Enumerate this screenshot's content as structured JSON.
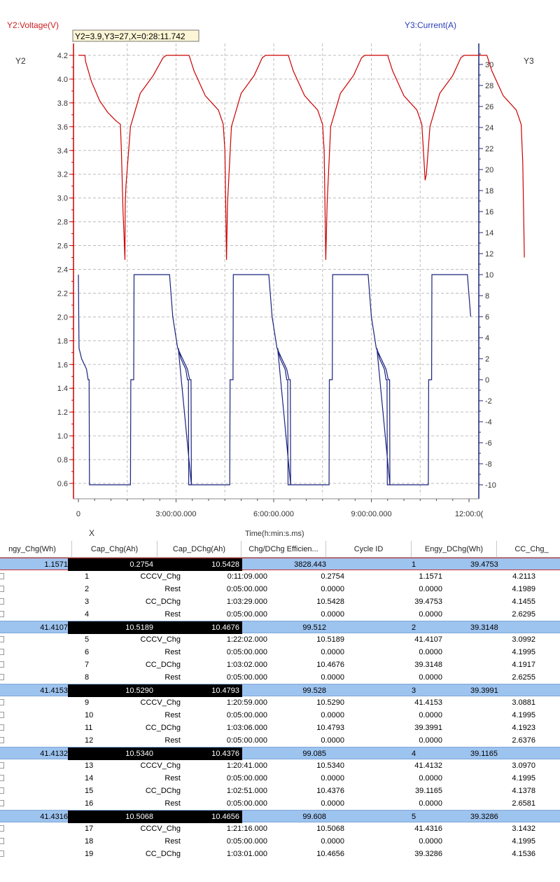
{
  "chart_data": {
    "type": "line",
    "legend": {
      "y2": "Y2:Voltage(V)",
      "y3": "Y3:Current(A)"
    },
    "cursor_readout": "Y2=3.9,Y3=27,X=0:28:11.742",
    "y2_axis": {
      "label": "Y2",
      "range": [
        0.5,
        4.3
      ],
      "ticks": [
        "0.6",
        "0.8",
        "1.0",
        "1.2",
        "1.4",
        "1.6",
        "1.8",
        "2.0",
        "2.2",
        "2.4",
        "2.6",
        "2.8",
        "3.0",
        "3.2",
        "3.4",
        "3.6",
        "3.8",
        "4.0",
        "4.2"
      ]
    },
    "y3_axis": {
      "label": "Y3",
      "range": [
        -11,
        32
      ],
      "ticks": [
        "-10",
        "-8",
        "-6",
        "-4",
        "-2",
        "0",
        "2",
        "4",
        "6",
        "8",
        "10",
        "12",
        "14",
        "16",
        "18",
        "20",
        "22",
        "24",
        "26",
        "28",
        "30"
      ]
    },
    "x_axis": {
      "marker": "X",
      "label": "Time(h:min:s.ms)",
      "range_hours": [
        -0.15,
        12.3
      ],
      "ticks": [
        "0",
        "3:00:00.000",
        "6:00:00.000",
        "9:00:00.000",
        "12:00:0("
      ]
    },
    "series": [
      {
        "name": "Y2:Voltage(V)",
        "axis": "y2",
        "color": "#cc0000",
        "points_hours_volts": [
          [
            0,
            4.2
          ],
          [
            0.2,
            4.2
          ],
          [
            0.22,
            4.15
          ],
          [
            0.4,
            3.98
          ],
          [
            0.65,
            3.82
          ],
          [
            0.9,
            3.72
          ],
          [
            1.15,
            3.65
          ],
          [
            1.29,
            3.62
          ],
          [
            1.32,
            3.4
          ],
          [
            1.37,
            2.9
          ],
          [
            1.43,
            2.48
          ],
          [
            1.44,
            2.95
          ],
          [
            1.46,
            3.1
          ],
          [
            1.6,
            3.6
          ],
          [
            1.9,
            3.88
          ],
          [
            2.3,
            4.03
          ],
          [
            2.6,
            4.18
          ],
          [
            2.7,
            4.2
          ],
          [
            3.4,
            4.2
          ],
          [
            3.55,
            4.07
          ],
          [
            3.9,
            3.86
          ],
          [
            4.3,
            3.74
          ],
          [
            4.45,
            3.62
          ],
          [
            4.5,
            3.4
          ],
          [
            4.55,
            2.48
          ],
          [
            4.58,
            2.95
          ],
          [
            4.7,
            3.6
          ],
          [
            5.0,
            3.88
          ],
          [
            5.4,
            4.03
          ],
          [
            5.65,
            4.18
          ],
          [
            5.75,
            4.2
          ],
          [
            6.45,
            4.2
          ],
          [
            6.6,
            4.07
          ],
          [
            6.95,
            3.86
          ],
          [
            7.35,
            3.74
          ],
          [
            7.5,
            3.62
          ],
          [
            7.55,
            3.4
          ],
          [
            7.6,
            2.48
          ],
          [
            7.64,
            2.95
          ],
          [
            7.75,
            3.6
          ],
          [
            8.05,
            3.88
          ],
          [
            8.45,
            4.03
          ],
          [
            8.7,
            4.18
          ],
          [
            8.8,
            4.2
          ],
          [
            9.5,
            4.2
          ],
          [
            9.65,
            4.07
          ],
          [
            10.0,
            3.86
          ],
          [
            10.4,
            3.74
          ],
          [
            10.55,
            3.62
          ],
          [
            10.6,
            3.4
          ],
          [
            10.65,
            3.15
          ],
          [
            10.69,
            3.2
          ],
          [
            10.8,
            3.6
          ],
          [
            11.1,
            3.88
          ],
          [
            11.5,
            4.03
          ],
          [
            11.75,
            4.18
          ],
          [
            11.85,
            4.2
          ],
          [
            12.55,
            4.2
          ],
          [
            12.7,
            4.07
          ],
          [
            13.05,
            3.86
          ],
          [
            13.45,
            3.74
          ],
          [
            13.6,
            3.62
          ],
          [
            13.65,
            3.3
          ],
          [
            13.7,
            2.5
          ]
        ],
        "cycle_period_hours": 3.05
      },
      {
        "name": "Y3:Current(A)",
        "axis": "y3",
        "color": "#1a237e",
        "points_hours_amps": [
          [
            0,
            10
          ],
          [
            0.02,
            3
          ],
          [
            0.1,
            2
          ],
          [
            0.25,
            1
          ],
          [
            0.3,
            0
          ],
          [
            0.33,
            0
          ],
          [
            0.34,
            -10
          ],
          [
            1.6,
            -10
          ],
          [
            1.61,
            0
          ],
          [
            1.7,
            0
          ],
          [
            1.71,
            10
          ],
          [
            2.8,
            10
          ],
          [
            2.9,
            6
          ],
          [
            3.05,
            3
          ],
          [
            3.2,
            2
          ],
          [
            3.35,
            1
          ],
          [
            3.42,
            0
          ],
          [
            3.46,
            0
          ],
          [
            3.47,
            -10
          ]
        ],
        "cycle_period_hours": 3.05
      }
    ]
  },
  "table": {
    "headers": [
      "ngy_Chg(Wh)",
      "Cap_Chg(Ah)",
      "Cap_DChg(Ah)",
      "Chg/DChg Efficien...",
      "Cycle ID",
      "Engy_DChg(Wh)",
      "CC_Chg_"
    ],
    "cycles": [
      {
        "engy_chg": "1.1571",
        "cap_chg": "0.2754",
        "cap_dchg": "10.5428",
        "eff": "3828.443",
        "cycle_id": "1",
        "engy_dchg": "39.4753",
        "steps": [
          {
            "id": "1",
            "type": "CCCV_Chg",
            "time": "0:11:09.000",
            "cap": "0.2754",
            "engy": "1.1571",
            "v": "4.2113"
          },
          {
            "id": "2",
            "type": "Rest",
            "time": "0:05:00.000",
            "cap": "0.0000",
            "engy": "0.0000",
            "v": "4.1989"
          },
          {
            "id": "3",
            "type": "CC_DChg",
            "time": "1:03:29.000",
            "cap": "10.5428",
            "engy": "39.4753",
            "v": "4.1455"
          },
          {
            "id": "4",
            "type": "Rest",
            "time": "0:05:00.000",
            "cap": "0.0000",
            "engy": "0.0000",
            "v": "2.6295"
          }
        ]
      },
      {
        "engy_chg": "41.4107",
        "cap_chg": "10.5189",
        "cap_dchg": "10.4676",
        "eff": "99.512",
        "cycle_id": "2",
        "engy_dchg": "39.3148",
        "steps": [
          {
            "id": "5",
            "type": "CCCV_Chg",
            "time": "1:22:02.000",
            "cap": "10.5189",
            "engy": "41.4107",
            "v": "3.0992"
          },
          {
            "id": "6",
            "type": "Rest",
            "time": "0:05:00.000",
            "cap": "0.0000",
            "engy": "0.0000",
            "v": "4.1995"
          },
          {
            "id": "7",
            "type": "CC_DChg",
            "time": "1:03:02.000",
            "cap": "10.4676",
            "engy": "39.3148",
            "v": "4.1917"
          },
          {
            "id": "8",
            "type": "Rest",
            "time": "0:05:00.000",
            "cap": "0.0000",
            "engy": "0.0000",
            "v": "2.6255"
          }
        ]
      },
      {
        "engy_chg": "41.4153",
        "cap_chg": "10.5290",
        "cap_dchg": "10.4793",
        "eff": "99.528",
        "cycle_id": "3",
        "engy_dchg": "39.3991",
        "steps": [
          {
            "id": "9",
            "type": "CCCV_Chg",
            "time": "1:20:59.000",
            "cap": "10.5290",
            "engy": "41.4153",
            "v": "3.0881"
          },
          {
            "id": "10",
            "type": "Rest",
            "time": "0:05:00.000",
            "cap": "0.0000",
            "engy": "0.0000",
            "v": "4.1995"
          },
          {
            "id": "11",
            "type": "CC_DChg",
            "time": "1:03:06.000",
            "cap": "10.4793",
            "engy": "39.3991",
            "v": "4.1923"
          },
          {
            "id": "12",
            "type": "Rest",
            "time": "0:05:00.000",
            "cap": "0.0000",
            "engy": "0.0000",
            "v": "2.6376"
          }
        ]
      },
      {
        "engy_chg": "41.4132",
        "cap_chg": "10.5340",
        "cap_dchg": "10.4376",
        "eff": "99.085",
        "cycle_id": "4",
        "engy_dchg": "39.1165",
        "steps": [
          {
            "id": "13",
            "type": "CCCV_Chg",
            "time": "1:20:41.000",
            "cap": "10.5340",
            "engy": "41.4132",
            "v": "3.0970"
          },
          {
            "id": "14",
            "type": "Rest",
            "time": "0:05:00.000",
            "cap": "0.0000",
            "engy": "0.0000",
            "v": "4.1995"
          },
          {
            "id": "15",
            "type": "CC_DChg",
            "time": "1:02:51.000",
            "cap": "10.4376",
            "engy": "39.1165",
            "v": "4.1378"
          },
          {
            "id": "16",
            "type": "Rest",
            "time": "0:05:00.000",
            "cap": "0.0000",
            "engy": "0.0000",
            "v": "2.6581"
          }
        ]
      },
      {
        "engy_chg": "41.4316",
        "cap_chg": "10.5068",
        "cap_dchg": "10.4656",
        "eff": "99.608",
        "cycle_id": "5",
        "engy_dchg": "39.3286",
        "steps": [
          {
            "id": "17",
            "type": "CCCV_Chg",
            "time": "1:21:16.000",
            "cap": "10.5068",
            "engy": "41.4316",
            "v": "3.1432"
          },
          {
            "id": "18",
            "type": "Rest",
            "time": "0:05:00.000",
            "cap": "0.0000",
            "engy": "0.0000",
            "v": "4.1995"
          },
          {
            "id": "19",
            "type": "CC_DChg",
            "time": "1:03:01.000",
            "cap": "10.4656",
            "engy": "39.3286",
            "v": "4.1536"
          }
        ]
      }
    ]
  }
}
